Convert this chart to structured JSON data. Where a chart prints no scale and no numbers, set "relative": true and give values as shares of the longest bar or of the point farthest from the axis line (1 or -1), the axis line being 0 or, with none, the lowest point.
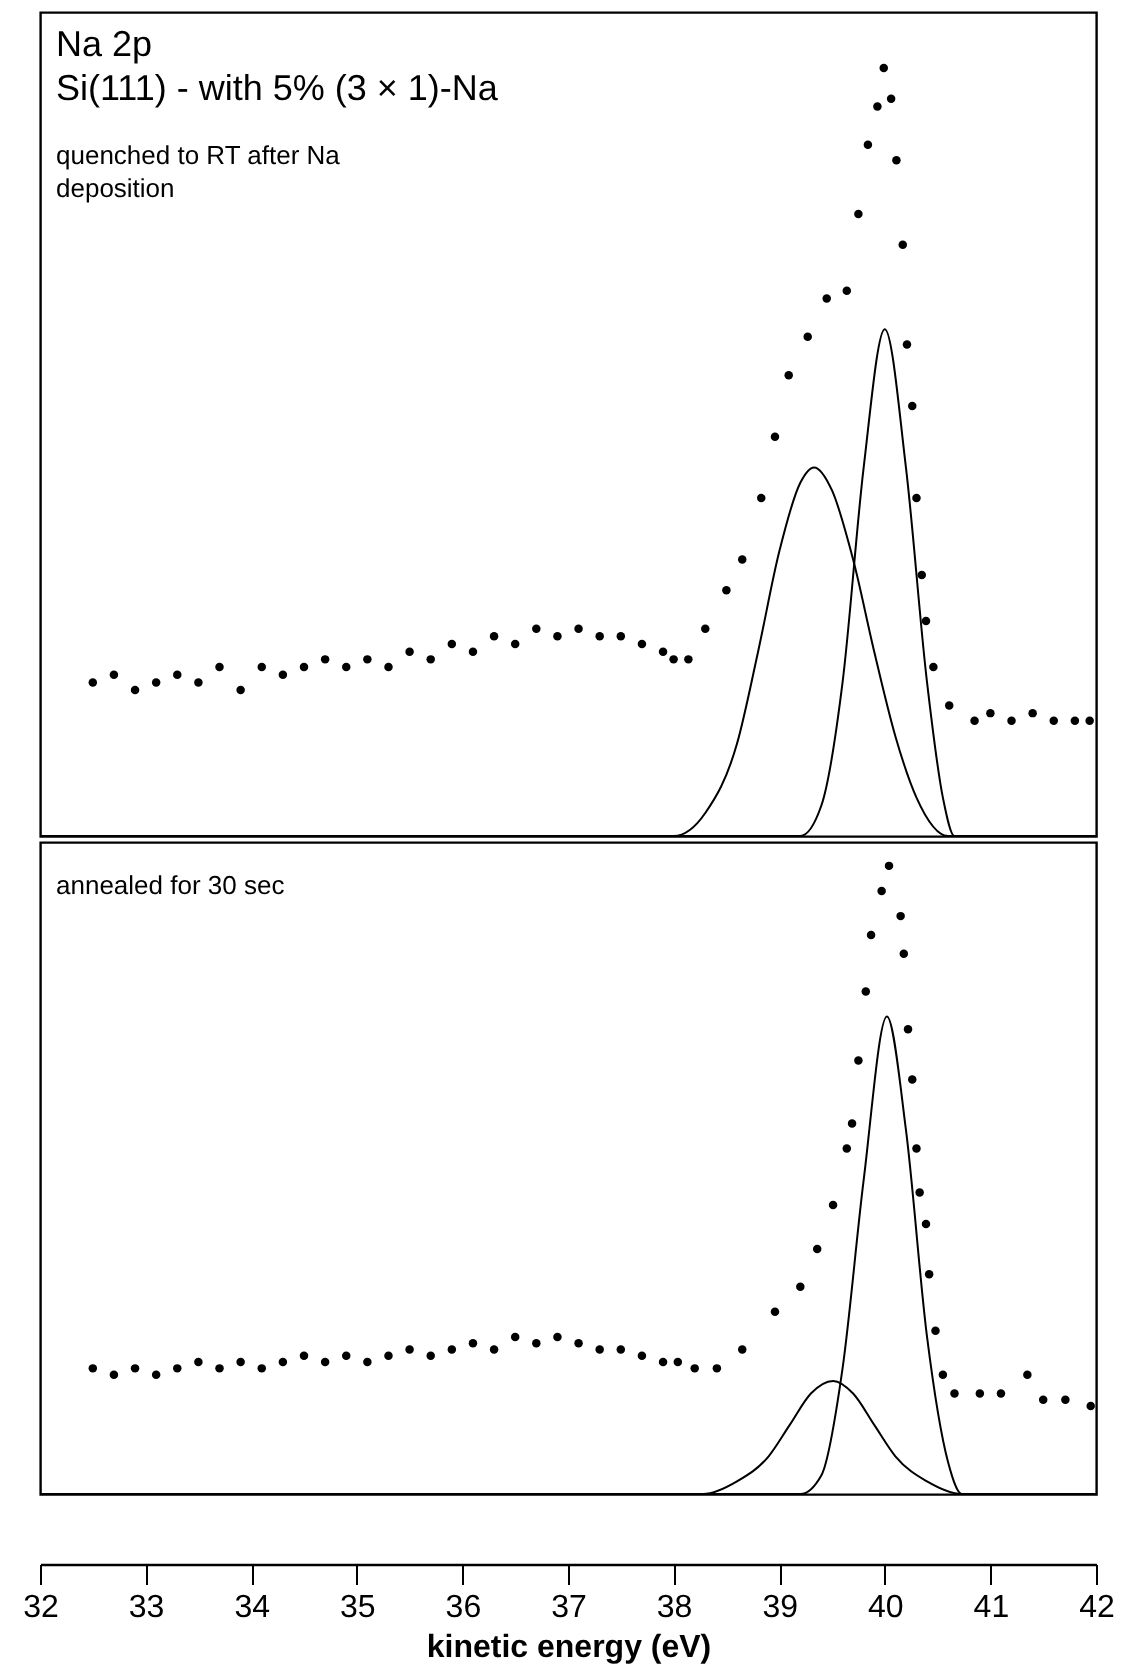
{
  "chart_data": [
    {
      "type": "scatter",
      "title": "Na 2p",
      "subtitle": "Si(111) - with 5% (3 × 1)-Na",
      "annotations": [
        "quenched to RT after Na deposition"
      ],
      "relative": true,
      "xlim": [
        32,
        42
      ],
      "tick_labels": false,
      "grid": false,
      "series": [
        {
          "marker": "circle",
          "color": "#000000",
          "x": [
            32.5,
            32.7,
            32.9,
            33.1,
            33.3,
            33.5,
            33.7,
            33.9,
            34.1,
            34.3,
            34.5,
            34.7,
            34.9,
            35.1,
            35.3,
            35.5,
            35.7,
            35.9,
            36.1,
            36.3,
            36.5,
            36.7,
            36.9,
            37.1,
            37.3,
            37.5,
            37.7,
            37.9,
            38.0,
            38.14,
            38.3,
            38.5,
            38.65,
            38.83,
            38.96,
            39.09,
            39.27,
            39.45,
            39.64,
            39.75,
            39.84,
            39.93,
            39.99,
            40.06,
            40.11,
            40.17,
            40.21,
            40.26,
            40.3,
            40.35,
            40.39,
            40.46,
            40.61,
            40.85,
            41.0,
            41.2,
            41.4,
            41.6,
            41.8,
            41.94
          ],
          "values": [
            0.2,
            0.21,
            0.19,
            0.2,
            0.21,
            0.2,
            0.22,
            0.19,
            0.22,
            0.21,
            0.22,
            0.23,
            0.22,
            0.23,
            0.22,
            0.24,
            0.23,
            0.25,
            0.24,
            0.26,
            0.25,
            0.27,
            0.26,
            0.27,
            0.26,
            0.26,
            0.25,
            0.24,
            0.23,
            0.23,
            0.27,
            0.32,
            0.36,
            0.44,
            0.52,
            0.6,
            0.65,
            0.7,
            0.71,
            0.81,
            0.9,
            0.95,
            1.0,
            0.96,
            0.88,
            0.77,
            0.64,
            0.56,
            0.44,
            0.34,
            0.28,
            0.22,
            0.17,
            0.15,
            0.16,
            0.15,
            0.16,
            0.15,
            0.15,
            0.15
          ]
        },
        {
          "type": "line",
          "color": "#000000",
          "x": [
            32,
            38.0,
            38.3,
            38.6,
            38.8,
            39.0,
            39.2,
            39.33,
            39.5,
            39.7,
            39.9,
            40.1,
            40.3,
            40.6,
            42
          ],
          "values": [
            0,
            0,
            0.03,
            0.12,
            0.24,
            0.37,
            0.46,
            0.48,
            0.45,
            0.36,
            0.24,
            0.13,
            0.05,
            0,
            0
          ]
        },
        {
          "type": "line",
          "color": "#000000",
          "x": [
            32,
            39.2,
            39.4,
            39.6,
            39.8,
            40.0,
            40.2,
            40.4,
            40.55,
            40.66,
            42
          ],
          "values": [
            0,
            0,
            0.04,
            0.2,
            0.48,
            0.66,
            0.48,
            0.2,
            0.05,
            0,
            0
          ]
        }
      ]
    },
    {
      "type": "scatter",
      "annotations": [
        "annealed for 30 sec"
      ],
      "xlabel": "kinetic energy (eV)",
      "relative": true,
      "xlim": [
        32,
        42
      ],
      "xticks": [
        32,
        33,
        34,
        35,
        36,
        37,
        38,
        39,
        40,
        41,
        42
      ],
      "grid": false,
      "series": [
        {
          "marker": "circle",
          "color": "#000000",
          "x": [
            32.5,
            32.7,
            32.9,
            33.1,
            33.3,
            33.5,
            33.7,
            33.9,
            34.1,
            34.3,
            34.5,
            34.7,
            34.9,
            35.1,
            35.3,
            35.5,
            35.7,
            35.9,
            36.1,
            36.3,
            36.5,
            36.7,
            36.9,
            37.1,
            37.3,
            37.5,
            37.7,
            37.9,
            38.04,
            38.2,
            38.41,
            38.65,
            38.96,
            39.2,
            39.36,
            39.51,
            39.64,
            39.69,
            39.75,
            39.82,
            39.87,
            39.97,
            40.04,
            40.15,
            40.18,
            40.22,
            40.26,
            40.3,
            40.33,
            40.39,
            40.42,
            40.48,
            40.55,
            40.66,
            40.9,
            41.1,
            41.35,
            41.5,
            41.71,
            41.95
          ],
          "values": [
            0.2,
            0.19,
            0.2,
            0.19,
            0.2,
            0.21,
            0.2,
            0.21,
            0.2,
            0.21,
            0.22,
            0.21,
            0.22,
            0.21,
            0.22,
            0.23,
            0.22,
            0.23,
            0.24,
            0.23,
            0.25,
            0.24,
            0.25,
            0.24,
            0.23,
            0.23,
            0.22,
            0.21,
            0.21,
            0.2,
            0.2,
            0.23,
            0.29,
            0.33,
            0.39,
            0.46,
            0.55,
            0.59,
            0.69,
            0.8,
            0.89,
            0.96,
            1.0,
            0.92,
            0.86,
            0.74,
            0.66,
            0.55,
            0.48,
            0.43,
            0.35,
            0.26,
            0.19,
            0.16,
            0.16,
            0.16,
            0.19,
            0.15,
            0.15,
            0.14
          ]
        },
        {
          "type": "line",
          "color": "#000000",
          "x": [
            32,
            38.28,
            38.6,
            38.9,
            39.1,
            39.3,
            39.51,
            39.7,
            39.9,
            40.1,
            40.4,
            40.73,
            42
          ],
          "values": [
            0,
            0,
            0.02,
            0.06,
            0.11,
            0.16,
            0.18,
            0.16,
            0.11,
            0.06,
            0.02,
            0,
            0
          ]
        },
        {
          "type": "line",
          "color": "#000000",
          "x": [
            32,
            39.2,
            39.4,
            39.6,
            39.8,
            40.02,
            40.2,
            40.4,
            40.6,
            40.73,
            42
          ],
          "values": [
            0,
            0,
            0.03,
            0.2,
            0.5,
            0.76,
            0.58,
            0.25,
            0.05,
            0,
            0
          ]
        }
      ]
    }
  ]
}
